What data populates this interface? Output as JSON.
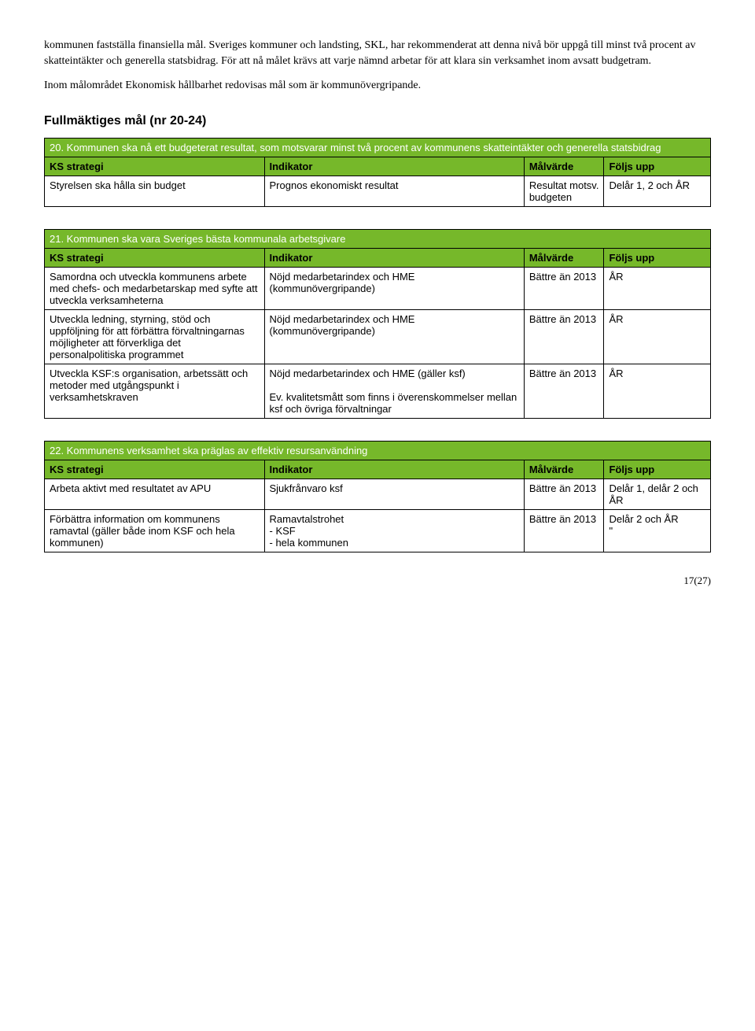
{
  "paragraphs": {
    "p1": "kommunen fastställa finansiella mål. Sveriges kommuner och landsting, SKL, har rekommenderat att denna nivå bör uppgå till minst två procent av skatteintäkter och generella statsbidrag. För att nå målet krävs att varje nämnd arbetar för att klara sin verksamhet inom avsatt budgetram.",
    "p2": "Inom målområdet Ekonomisk hållbarhet redovisas mål som är kommunövergripande."
  },
  "heading": "Fullmäktiges mål (nr 20-24)",
  "headers": {
    "strategy": "KS strategi",
    "indicator": "Indikator",
    "target": "Målvärde",
    "follow": "Följs upp"
  },
  "tables": [
    {
      "banner": "20. Kommunen ska nå ett budgeterat resultat, som motsvarar minst två procent av kommunens skatteintäkter och generella statsbidrag",
      "rows": [
        {
          "strategy": "Styrelsen ska hålla sin budget",
          "indicator": "Prognos ekonomiskt resultat",
          "target": "Resultat motsv. budgeten",
          "follow": "Delår 1, 2 och ÅR"
        }
      ]
    },
    {
      "banner": "21. Kommunen ska vara Sveriges bästa kommunala arbetsgivare",
      "rows": [
        {
          "strategy": "Samordna och utveckla kommunens arbete med chefs- och medarbetarskap med syfte att utveckla verksamheterna",
          "indicator": "Nöjd medarbetarindex och HME (kommunövergripande)",
          "target": "Bättre än 2013",
          "follow": "ÅR"
        },
        {
          "strategy": "Utveckla ledning, styrning, stöd och uppföljning för att förbättra förvaltningarnas möjligheter att förverkliga det personalpolitiska programmet",
          "indicator": "Nöjd medarbetarindex och HME (kommunövergripande)",
          "target": "Bättre än 2013",
          "follow": "ÅR"
        },
        {
          "strategy": "Utveckla KSF:s organisation, arbetssätt och metoder med utgångspunkt i verksamhetskraven",
          "indicator": "Nöjd medarbetarindex och HME (gäller ksf)\n\nEv. kvalitetsmått som finns i överenskommelser mellan ksf och övriga förvaltningar",
          "target": "Bättre än 2013",
          "follow": "ÅR"
        }
      ]
    },
    {
      "banner": "22. Kommunens verksamhet ska präglas av effektiv resursanvändning",
      "rows": [
        {
          "strategy": "Arbeta aktivt med resultatet av APU",
          "indicator": "Sjukfrånvaro ksf",
          "target": "Bättre än 2013",
          "follow": "Delår 1, delår 2 och ÅR"
        },
        {
          "strategy": "Förbättra information om kommunens ramavtal (gäller både inom KSF och hela kommunen)",
          "indicator": "Ramavtalstrohet\n- KSF\n- hela kommunen",
          "target": "Bättre än 2013",
          "follow": "Delår 2 och ÅR\n\""
        }
      ]
    }
  ],
  "pageNumber": "17(27)",
  "colors": {
    "bannerBg": "#76b82a",
    "bannerText": "#ffffff",
    "headerText": "#000000",
    "border": "#000000"
  }
}
